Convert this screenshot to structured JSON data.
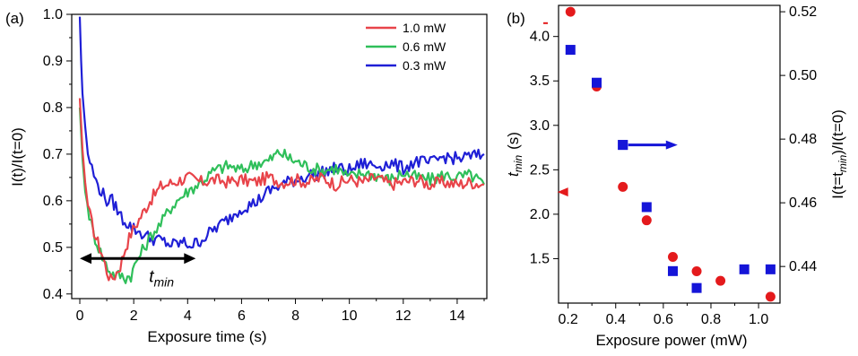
{
  "chart_data": [
    {
      "type": "line",
      "panel_label": "(a)",
      "xlabel": "Exposure time (s)",
      "ylabel": "I(t)/I(t=0)",
      "xlim": [
        -0.3,
        15.1
      ],
      "ylim": [
        0.39,
        1.0
      ],
      "xticks": [
        0,
        2,
        4,
        6,
        8,
        10,
        12,
        14
      ],
      "yticks": [
        0.4,
        0.5,
        0.6,
        0.7,
        0.8,
        0.9,
        1.0
      ],
      "grid": false,
      "legend_position": "top-right",
      "annotation": {
        "text_main": "t",
        "text_sub": "min",
        "arrow_from": 0.0,
        "arrow_to": 4.3,
        "arrow_y": 0.476
      },
      "series": [
        {
          "name": "1.0 mW",
          "color": "#e8444a",
          "x": [
            0,
            0.1,
            0.2,
            0.3,
            0.45,
            0.6,
            0.8,
            1.0,
            1.15,
            1.3,
            1.5,
            1.7,
            1.9,
            2.2,
            2.6,
            3.0,
            3.5,
            4.0,
            4.5,
            5.0,
            5.5,
            6.0,
            6.5,
            7.0,
            7.5,
            8.0,
            8.5,
            9.0,
            9.5,
            10.0,
            10.5,
            11.0,
            11.5,
            12.0,
            12.5,
            13.0,
            13.5,
            14.0,
            14.5,
            15.0
          ],
          "y": [
            0.82,
            0.71,
            0.64,
            0.59,
            0.55,
            0.52,
            0.49,
            0.45,
            0.43,
            0.44,
            0.46,
            0.5,
            0.53,
            0.56,
            0.6,
            0.63,
            0.64,
            0.65,
            0.64,
            0.645,
            0.64,
            0.645,
            0.64,
            0.65,
            0.64,
            0.645,
            0.64,
            0.65,
            0.635,
            0.645,
            0.64,
            0.65,
            0.635,
            0.64,
            0.645,
            0.635,
            0.64,
            0.635,
            0.64,
            0.635
          ]
        },
        {
          "name": "0.6 mW",
          "color": "#2fbf5a",
          "x": [
            0,
            0.1,
            0.2,
            0.35,
            0.5,
            0.7,
            0.9,
            1.1,
            1.3,
            1.5,
            1.7,
            1.9,
            2.1,
            2.4,
            2.7,
            3.0,
            3.3,
            3.6,
            4.0,
            4.5,
            5.0,
            5.5,
            6.0,
            6.5,
            7.0,
            7.4,
            7.8,
            8.2,
            8.6,
            9.0,
            9.5,
            10.0,
            10.5,
            11.0,
            11.5,
            12.0,
            12.5,
            13.0,
            13.5,
            14.0,
            14.5,
            15.0
          ],
          "y": [
            0.8,
            0.69,
            0.62,
            0.57,
            0.53,
            0.5,
            0.47,
            0.45,
            0.44,
            0.44,
            0.435,
            0.44,
            0.47,
            0.5,
            0.53,
            0.55,
            0.58,
            0.6,
            0.62,
            0.64,
            0.665,
            0.675,
            0.665,
            0.68,
            0.685,
            0.705,
            0.69,
            0.68,
            0.67,
            0.665,
            0.67,
            0.65,
            0.66,
            0.655,
            0.645,
            0.66,
            0.65,
            0.645,
            0.655,
            0.65,
            0.655,
            0.635
          ]
        },
        {
          "name": "0.3 mW",
          "color": "#1f1fd6",
          "x": [
            0,
            0.05,
            0.1,
            0.2,
            0.3,
            0.45,
            0.6,
            0.8,
            1.0,
            1.2,
            1.4,
            1.6,
            1.8,
            2.0,
            2.3,
            2.6,
            3.0,
            3.4,
            3.8,
            4.2,
            4.6,
            5.0,
            5.5,
            6.0,
            6.5,
            7.0,
            7.5,
            8.0,
            8.5,
            9.0,
            9.5,
            10.0,
            10.5,
            11.0,
            11.5,
            12.0,
            12.5,
            13.0,
            13.5,
            14.0,
            14.5,
            15.0
          ],
          "y": [
            0.995,
            0.9,
            0.83,
            0.76,
            0.7,
            0.67,
            0.64,
            0.62,
            0.6,
            0.6,
            0.58,
            0.56,
            0.55,
            0.54,
            0.53,
            0.52,
            0.515,
            0.505,
            0.51,
            0.505,
            0.52,
            0.54,
            0.56,
            0.585,
            0.595,
            0.62,
            0.635,
            0.645,
            0.655,
            0.66,
            0.67,
            0.665,
            0.68,
            0.675,
            0.68,
            0.67,
            0.685,
            0.68,
            0.695,
            0.69,
            0.695,
            0.7
          ]
        }
      ]
    },
    {
      "type": "scatter",
      "panel_label": "(b)",
      "xlabel": "Exposure power (mW)",
      "ylabel_left_main": "t",
      "ylabel_left_sub": "min",
      "ylabel_left_unit": "(s)",
      "ylabel_right": "I(t=t",
      "ylabel_right_sub": "min",
      "ylabel_right_tail": ")/I(t=0)",
      "xlim": [
        0.16,
        1.09
      ],
      "ylim_left": [
        1.0,
        4.35
      ],
      "ylim_right": [
        0.4285,
        0.522
      ],
      "xticks": [
        "0.2",
        "0.4",
        "0.6",
        "0.8",
        "1.0"
      ],
      "xtick_values": [
        0.2,
        0.4,
        0.6,
        0.8,
        1.0
      ],
      "yticks_left": [
        "1.5",
        "2.0",
        "2.5",
        "3.0",
        "3.5",
        "4.0"
      ],
      "ytick_left_values": [
        1.5,
        2.0,
        2.5,
        3.0,
        3.5,
        4.0
      ],
      "yticks_right": [
        "0.44",
        "0.46",
        "0.48",
        "0.50",
        "0.52"
      ],
      "ytick_right_values": [
        0.44,
        0.46,
        0.48,
        0.5,
        0.52
      ],
      "grid": false,
      "series": [
        {
          "name": "",
          "axis": "right",
          "marker": "circle",
          "color": "#e41a1c",
          "x": [
            0.21,
            0.32,
            0.43,
            0.53,
            0.64,
            0.74,
            0.84,
            1.05
          ],
          "y": [
            0.52,
            0.4965,
            0.465,
            0.4545,
            0.443,
            0.4385,
            0.4355,
            0.4305
          ]
        },
        {
          "name": "",
          "axis": "left",
          "marker": "square",
          "color": "#1515d8",
          "x": [
            0.21,
            0.32,
            0.43,
            0.53,
            0.64,
            0.74,
            0.94,
            1.05
          ],
          "y": [
            3.85,
            3.48,
            2.78,
            2.08,
            1.36,
            1.17,
            1.38,
            1.38
          ]
        }
      ],
      "legend_markers": {
        "square_value_left": 2.78,
        "square_x": 0.43,
        "arrow_to_x": 0.66,
        "triangle_x": 0.17,
        "triangle_value_left": 2.25,
        "tick_mark_left_value": 4.15
      }
    }
  ]
}
